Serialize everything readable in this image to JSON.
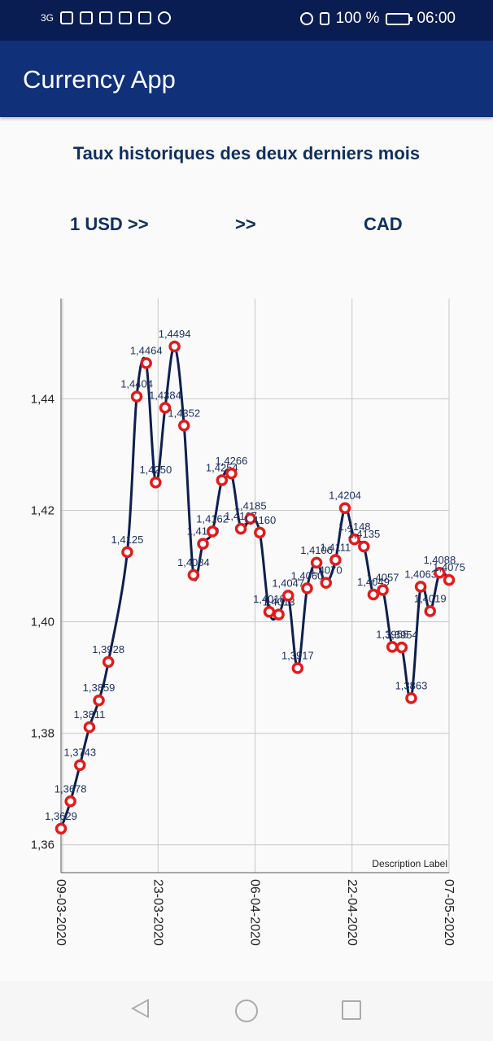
{
  "status_bar": {
    "network": "3G",
    "battery": "100 %",
    "time": "06:00",
    "icons": [
      "signal-icon",
      "wifi-icon",
      "usb-icon",
      "gmail-icon",
      "news-icon",
      "linkedin-icon",
      "play-icon"
    ],
    "right_icons": [
      "alarm-icon",
      "vibrate-icon",
      "battery-icon"
    ]
  },
  "app_bar": {
    "title": "Currency App"
  },
  "main": {
    "heading": "Taux historiques des deux derniers mois",
    "from_label": "1 USD >>",
    "separator": ">>",
    "to_label": "CAD"
  },
  "chart_data": {
    "type": "line",
    "x_tick_labels": [
      "09-03-2020",
      "23-03-2020",
      "06-04-2020",
      "22-04-2020",
      "07-05-2020"
    ],
    "y_tick_labels": [
      "1,36",
      "1,38",
      "1,40",
      "1,42",
      "1,44"
    ],
    "ylim": [
      1.355,
      1.458
    ],
    "y_ticks": [
      1.36,
      1.38,
      1.4,
      1.42,
      1.44
    ],
    "grid": true,
    "description_label": "Description Label",
    "colors": {
      "line": "#0d1f4f",
      "point": "#e41b1b",
      "label": "#1a2e5e",
      "grid": "#c8c8c8"
    },
    "points": [
      {
        "x": 0,
        "y": 1.3629,
        "label": "1,3629"
      },
      {
        "x": 1,
        "y": 1.3678,
        "label": "1,3678"
      },
      {
        "x": 2,
        "y": 1.3743,
        "label": "1,3743"
      },
      {
        "x": 3,
        "y": 1.3811,
        "label": "1,3811"
      },
      {
        "x": 4,
        "y": 1.3859,
        "label": "1,3859"
      },
      {
        "x": 5,
        "y": 1.3928,
        "label": "1,3928"
      },
      {
        "x": 7,
        "y": 1.4125,
        "label": "1,4125"
      },
      {
        "x": 8,
        "y": 1.4404,
        "label": "1,4404"
      },
      {
        "x": 9,
        "y": 1.4464,
        "label": "1,4464"
      },
      {
        "x": 10,
        "y": 1.425,
        "label": "1,4250"
      },
      {
        "x": 11,
        "y": 1.4384,
        "label": "1,4384"
      },
      {
        "x": 12,
        "y": 1.4494,
        "label": "1,4494"
      },
      {
        "x": 13,
        "y": 1.4352,
        "label": "1,4352"
      },
      {
        "x": 14,
        "y": 1.4084,
        "label": "1,4084"
      },
      {
        "x": 15,
        "y": 1.414,
        "label": "1,4140"
      },
      {
        "x": 16,
        "y": 1.4162,
        "label": "1,4162"
      },
      {
        "x": 17,
        "y": 1.4254,
        "label": "1,4254"
      },
      {
        "x": 18,
        "y": 1.4266,
        "label": "1,4266"
      },
      {
        "x": 19,
        "y": 1.4167,
        "label": "1,4167"
      },
      {
        "x": 20,
        "y": 1.4185,
        "label": "1,4185"
      },
      {
        "x": 21,
        "y": 1.416,
        "label": "1,4160"
      },
      {
        "x": 22,
        "y": 1.4018,
        "label": "1,4018"
      },
      {
        "x": 23,
        "y": 1.4013,
        "label": "1,4013"
      },
      {
        "x": 24,
        "y": 1.4047,
        "label": "1,4047"
      },
      {
        "x": 25,
        "y": 1.3917,
        "label": "1,3917"
      },
      {
        "x": 26,
        "y": 1.406,
        "label": "1,4060"
      },
      {
        "x": 27,
        "y": 1.4106,
        "label": "1,4106"
      },
      {
        "x": 28,
        "y": 1.407,
        "label": "1,4070"
      },
      {
        "x": 29,
        "y": 1.4111,
        "label": "1,4111"
      },
      {
        "x": 30,
        "y": 1.4204,
        "label": "1,4204"
      },
      {
        "x": 31,
        "y": 1.4148,
        "label": "1,4148"
      },
      {
        "x": 32,
        "y": 1.4135,
        "label": "1,4135"
      },
      {
        "x": 33,
        "y": 1.4049,
        "label": "1,4049"
      },
      {
        "x": 34,
        "y": 1.4057,
        "label": "1,4057"
      },
      {
        "x": 35,
        "y": 1.3955,
        "label": "1,3955"
      },
      {
        "x": 36,
        "y": 1.3954,
        "label": "1,3954"
      },
      {
        "x": 37,
        "y": 1.3863,
        "label": "1,3863"
      },
      {
        "x": 38,
        "y": 1.4063,
        "label": "1,4063"
      },
      {
        "x": 39,
        "y": 1.4019,
        "label": "1,4019"
      },
      {
        "x": 40,
        "y": 1.4088,
        "label": "1,4088"
      },
      {
        "x": 41,
        "y": 1.4075,
        "label": "1,4075"
      }
    ]
  },
  "nav_bar": {
    "icons": [
      "back-icon",
      "home-icon",
      "recent-apps-icon"
    ]
  }
}
